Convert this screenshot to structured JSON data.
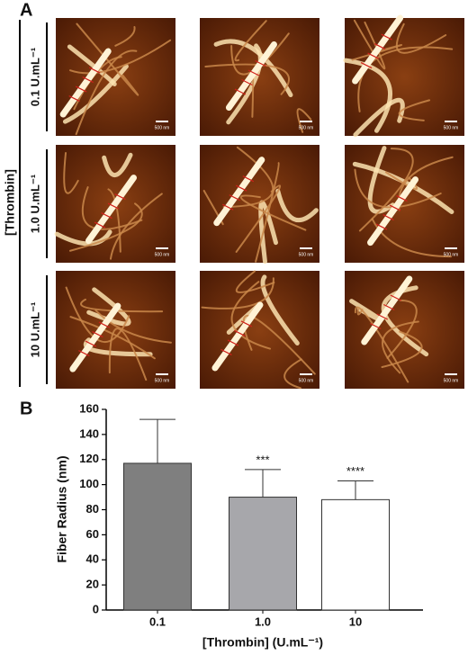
{
  "panel_a": {
    "label": "A",
    "group_label": "[Thrombin]",
    "rows": [
      "0.1 U.mL⁻¹",
      "1.0 U.mL⁻¹",
      "10 U.mL⁻¹"
    ],
    "scale_bar_label": "500 nm"
  },
  "chart_data": {
    "type": "bar",
    "panel_label": "B",
    "y_label": "Fiber Radius (nm)",
    "x_label": "[Thrombin] (U.mL⁻¹)",
    "categories": [
      "0.1",
      "1.0",
      "10"
    ],
    "values": [
      117,
      90,
      88
    ],
    "errors": [
      35,
      22,
      15
    ],
    "annotations": [
      null,
      "***",
      "****"
    ],
    "colors": [
      "#7f7f7f",
      "#a7a7ab",
      "#ffffff"
    ],
    "ylim": [
      0,
      160
    ],
    "yticks": [
      0,
      20,
      40,
      60,
      80,
      100,
      120,
      140,
      160
    ]
  }
}
